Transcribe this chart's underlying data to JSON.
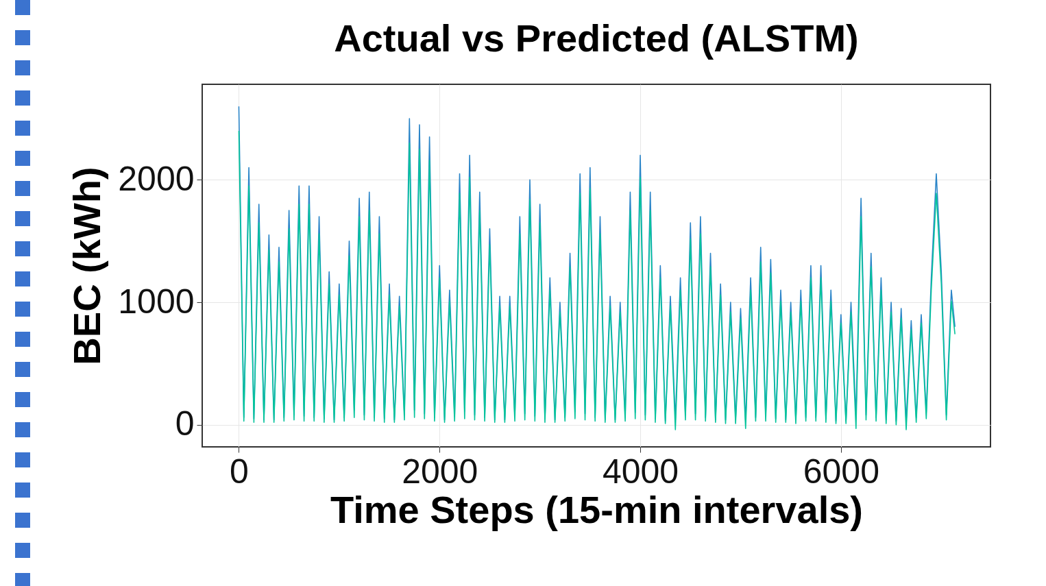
{
  "chart_data": {
    "type": "line",
    "title": "Actual vs Predicted (ALSTM)",
    "xlabel": "Time Steps (15-min intervals)",
    "ylabel": "BEC (kWh)",
    "x": [
      0,
      50,
      100,
      150,
      200,
      250,
      300,
      350,
      400,
      450,
      500,
      550,
      600,
      650,
      700,
      750,
      800,
      850,
      900,
      950,
      1000,
      1050,
      1100,
      1150,
      1200,
      1250,
      1300,
      1350,
      1400,
      1450,
      1500,
      1550,
      1600,
      1650,
      1700,
      1750,
      1800,
      1850,
      1900,
      1950,
      2000,
      2050,
      2100,
      2150,
      2200,
      2250,
      2300,
      2350,
      2400,
      2450,
      2500,
      2550,
      2600,
      2650,
      2700,
      2750,
      2800,
      2850,
      2900,
      2950,
      3000,
      3050,
      3100,
      3150,
      3200,
      3250,
      3300,
      3350,
      3400,
      3450,
      3500,
      3550,
      3600,
      3650,
      3700,
      3750,
      3800,
      3850,
      3900,
      3950,
      4000,
      4050,
      4100,
      4150,
      4200,
      4250,
      4300,
      4350,
      4400,
      4450,
      4500,
      4550,
      4600,
      4650,
      4700,
      4750,
      4800,
      4850,
      4900,
      4950,
      5000,
      5050,
      5100,
      5150,
      5200,
      5250,
      5300,
      5350,
      5400,
      5450,
      5500,
      5550,
      5600,
      5650,
      5700,
      5750,
      5800,
      5850,
      5900,
      5950,
      6000,
      6050,
      6100,
      6150,
      6200,
      6250,
      6300,
      6350,
      6400,
      6450,
      6500,
      6550,
      6600,
      6650,
      6700,
      6750,
      6800,
      6850,
      6900,
      6950,
      7000,
      7050,
      7100,
      7136
    ],
    "series": [
      {
        "color": "#2b85c8",
        "values": [
          2600,
          60,
          2100,
          50,
          1800,
          40,
          1550,
          40,
          1450,
          60,
          1750,
          80,
          1950,
          70,
          1950,
          60,
          1700,
          50,
          1250,
          40,
          1150,
          60,
          1500,
          120,
          1850,
          80,
          1900,
          60,
          1700,
          50,
          1150,
          40,
          1050,
          80,
          2500,
          120,
          2450,
          90,
          2350,
          60,
          1300,
          40,
          1100,
          70,
          2050,
          110,
          2200,
          80,
          1900,
          60,
          1600,
          40,
          1050,
          40,
          1050,
          70,
          1700,
          90,
          2000,
          70,
          1800,
          50,
          1200,
          40,
          1000,
          60,
          1400,
          110,
          2050,
          90,
          2100,
          60,
          1700,
          40,
          1050,
          40,
          1000,
          70,
          1900,
          100,
          2200,
          80,
          1900,
          50,
          1300,
          30,
          1050,
          40,
          1200,
          80,
          1650,
          90,
          1700,
          60,
          1400,
          40,
          1150,
          40,
          1000,
          50,
          950,
          30,
          1200,
          60,
          1450,
          70,
          1350,
          50,
          1100,
          40,
          1000,
          40,
          1100,
          60,
          1300,
          60,
          1300,
          50,
          1100,
          30,
          900,
          30,
          1000,
          70,
          1850,
          80,
          1400,
          60,
          1200,
          40,
          1000,
          30,
          950,
          30,
          850,
          60,
          900,
          100,
          1200,
          2050,
          1250,
          80,
          1100,
          800
        ]
      },
      {
        "color": "#05c49c",
        "values": [
          2400,
          30,
          1950,
          20,
          1650,
          20,
          1430,
          20,
          1330,
          30,
          1600,
          40,
          1800,
          30,
          1800,
          30,
          1560,
          20,
          1150,
          20,
          1060,
          30,
          1380,
          60,
          1700,
          40,
          1750,
          30,
          1560,
          20,
          1060,
          20,
          970,
          40,
          2300,
          60,
          2250,
          50,
          2160,
          30,
          1200,
          20,
          1010,
          30,
          1890,
          50,
          2020,
          40,
          1750,
          30,
          1470,
          20,
          970,
          20,
          970,
          30,
          1560,
          40,
          1840,
          30,
          1650,
          20,
          1100,
          20,
          920,
          30,
          1290,
          50,
          1890,
          40,
          1930,
          30,
          1560,
          20,
          970,
          20,
          920,
          30,
          1750,
          50,
          2020,
          40,
          1750,
          20,
          1200,
          10,
          970,
          -40,
          1100,
          40,
          1520,
          40,
          1560,
          30,
          1290,
          20,
          1060,
          10,
          920,
          10,
          870,
          -30,
          1100,
          30,
          1330,
          30,
          1240,
          20,
          1010,
          20,
          920,
          10,
          1010,
          30,
          1200,
          30,
          1200,
          20,
          1010,
          10,
          830,
          10,
          920,
          -30,
          1700,
          40,
          1290,
          30,
          1100,
          10,
          920,
          0,
          870,
          -40,
          780,
          20,
          830,
          50,
          1100,
          1890,
          1150,
          40,
          1010,
          740
        ]
      }
    ],
    "xlim": [
      -365,
      7490
    ],
    "ylim": [
      -180,
      2780
    ],
    "xticks": [
      0,
      2000,
      4000,
      6000
    ],
    "yticks": [
      0,
      1000,
      2000
    ],
    "grid": true,
    "line_style": "solid"
  }
}
